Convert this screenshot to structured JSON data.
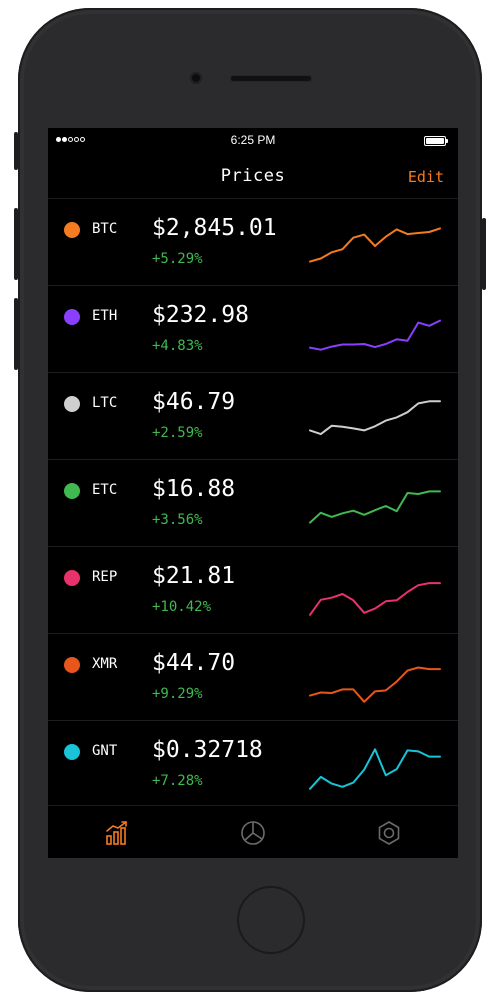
{
  "status_bar": {
    "time": "6:25 PM",
    "signal_bars_filled": 2,
    "signal_bars_total": 5
  },
  "nav": {
    "title": "Prices",
    "edit_label": "Edit"
  },
  "colors": {
    "accent": "#f47b20",
    "positive": "#3fb950"
  },
  "coins": [
    {
      "symbol": "BTC",
      "price": "$2,845.01",
      "change": "+5.29%",
      "color": "#f47b20",
      "spark": [
        18,
        24,
        36,
        42,
        64,
        70,
        48,
        66,
        80,
        71,
        73,
        75,
        82
      ]
    },
    {
      "symbol": "ETH",
      "price": "$232.98",
      "change": "+4.83%",
      "color": "#8a3ffc",
      "spark": [
        20,
        16,
        22,
        26,
        26,
        27,
        21,
        27,
        36,
        33,
        68,
        62,
        72
      ]
    },
    {
      "symbol": "LTC",
      "price": "$46.79",
      "change": "+2.59%",
      "color": "#cfcfcf",
      "spark": [
        28,
        21,
        37,
        35,
        32,
        28,
        36,
        47,
        53,
        63,
        80,
        84,
        84
      ]
    },
    {
      "symbol": "ETC",
      "price": "$16.88",
      "change": "+3.56%",
      "color": "#3fb950",
      "spark": [
        18,
        37,
        29,
        36,
        41,
        33,
        42,
        50,
        40,
        75,
        73,
        78,
        78
      ]
    },
    {
      "symbol": "REP",
      "price": "$21.81",
      "change": "+10.42%",
      "color": "#e8326b",
      "spark": [
        8,
        37,
        41,
        48,
        36,
        12,
        20,
        34,
        36,
        52,
        65,
        69,
        69
      ]
    },
    {
      "symbol": "XMR",
      "price": "$44.70",
      "change": "+9.29%",
      "color": "#e8561c",
      "spark": [
        20,
        26,
        25,
        32,
        32,
        8,
        28,
        30,
        47,
        68,
        74,
        71,
        71
      ]
    },
    {
      "symbol": "GNT",
      "price": "$0.32718",
      "change": "+7.28%",
      "color": "#19c3d8",
      "spark": [
        8,
        31,
        18,
        12,
        20,
        45,
        84,
        34,
        46,
        82,
        80,
        70,
        70
      ]
    }
  ],
  "tabs": [
    {
      "icon": "chart-bars-icon",
      "active": true
    },
    {
      "icon": "pie-chart-icon",
      "active": false
    },
    {
      "icon": "settings-hexagon-icon",
      "active": false
    }
  ]
}
